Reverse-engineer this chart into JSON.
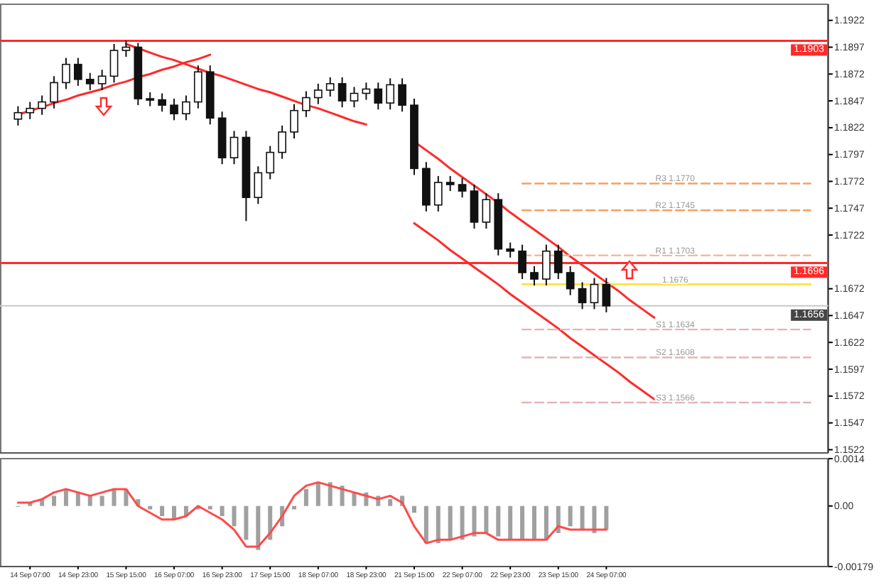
{
  "chart_data": [
    {
      "type": "candlestick",
      "categories": [
        null,
        null,
        null,
        null,
        null,
        null,
        null,
        null,
        null,
        null,
        null,
        null,
        null,
        null,
        null,
        null,
        null,
        null,
        null,
        null,
        null,
        null,
        null,
        null,
        null,
        null,
        null,
        null,
        null,
        null,
        null,
        null,
        null,
        null,
        null,
        null,
        null,
        null,
        null,
        null,
        null,
        null,
        null,
        null,
        null,
        null,
        null,
        null,
        null,
        null,
        null,
        null,
        null,
        null,
        null,
        null,
        null,
        null,
        null,
        null,
        null,
        null,
        null,
        null,
        null,
        null,
        null
      ],
      "ohlc": [
        [
          1.183,
          1.1842,
          1.1824,
          1.1836
        ],
        [
          1.1836,
          1.1846,
          1.183,
          1.184
        ],
        [
          1.184,
          1.1852,
          1.1834,
          1.1846
        ],
        [
          1.1846,
          1.187,
          1.184,
          1.1864
        ],
        [
          1.1864,
          1.1887,
          1.1858,
          1.1881
        ],
        [
          1.1881,
          1.1887,
          1.1861,
          1.1867
        ],
        [
          1.1867,
          1.1873,
          1.1857,
          1.1863
        ],
        [
          1.1863,
          1.1876,
          1.1857,
          1.187
        ],
        [
          1.187,
          1.19,
          1.1864,
          1.1894
        ],
        [
          1.1894,
          1.1903,
          1.1888,
          1.1897
        ],
        [
          1.1897,
          1.1901,
          1.1843,
          1.1849
        ],
        [
          1.1849,
          1.1855,
          1.1842,
          1.1848
        ],
        [
          1.1848,
          1.1854,
          1.1837,
          1.1843
        ],
        [
          1.1843,
          1.1849,
          1.1829,
          1.1835
        ],
        [
          1.1835,
          1.1852,
          1.1829,
          1.1846
        ],
        [
          1.1846,
          1.188,
          1.184,
          1.1874
        ],
        [
          1.1874,
          1.188,
          1.1825,
          1.1831
        ],
        [
          1.1831,
          1.1837,
          1.1788,
          1.1794
        ],
        [
          1.1794,
          1.1819,
          1.1788,
          1.1813
        ],
        [
          1.1813,
          1.1819,
          1.1735,
          1.1757
        ],
        [
          1.1757,
          1.1786,
          1.1751,
          1.178
        ],
        [
          1.178,
          1.1805,
          1.1774,
          1.1799
        ],
        [
          1.1799,
          1.1824,
          1.1793,
          1.1818
        ],
        [
          1.1818,
          1.1844,
          1.1812,
          1.1838
        ],
        [
          1.1838,
          1.1856,
          1.1832,
          1.185
        ],
        [
          1.185,
          1.1863,
          1.1844,
          1.1857
        ],
        [
          1.1857,
          1.1869,
          1.1851,
          1.1863
        ],
        [
          1.1863,
          1.1869,
          1.1841,
          1.1847
        ],
        [
          1.1847,
          1.186,
          1.1841,
          1.1854
        ],
        [
          1.1854,
          1.1864,
          1.1848,
          1.1858
        ],
        [
          1.1858,
          1.1864,
          1.1839,
          1.1845
        ],
        [
          1.1845,
          1.1868,
          1.1839,
          1.1862
        ],
        [
          1.1862,
          1.1868,
          1.1837,
          1.1843
        ],
        [
          1.1843,
          1.1849,
          1.1778,
          1.1784
        ],
        [
          1.1784,
          1.179,
          1.1744,
          1.175
        ],
        [
          1.175,
          1.1777,
          1.1744,
          1.1771
        ],
        [
          1.1771,
          1.1777,
          1.1763,
          1.1769
        ],
        [
          1.1769,
          1.1775,
          1.1757,
          1.1763
        ],
        [
          1.1763,
          1.1769,
          1.1728,
          1.1734
        ],
        [
          1.1734,
          1.1761,
          1.1728,
          1.1755
        ],
        [
          1.1755,
          1.1761,
          1.1703,
          1.1709
        ],
        [
          1.1709,
          1.1715,
          1.1701,
          1.1707
        ],
        [
          1.1707,
          1.1713,
          1.1681,
          1.1687
        ],
        [
          1.1687,
          1.1693,
          1.1675,
          1.1681
        ],
        [
          1.1681,
          1.1713,
          1.1675,
          1.1707
        ],
        [
          1.1707,
          1.1713,
          1.1681,
          1.1687
        ],
        [
          1.1687,
          1.1693,
          1.1666,
          1.1672
        ],
        [
          1.1672,
          1.1678,
          1.1653,
          1.1659
        ],
        [
          1.1659,
          1.1682,
          1.1653,
          1.1676
        ],
        [
          1.1676,
          1.1682,
          1.165,
          1.1656
        ],
        null,
        null,
        null,
        null,
        null,
        null,
        null,
        null,
        null,
        null,
        null,
        null,
        null,
        null,
        null,
        null,
        null
      ],
      "series": [
        {
          "type": "line",
          "color": "#ff2a2a",
          "values": [
            1.1834,
            1.1838,
            1.1841,
            1.1845,
            1.1848,
            1.1852,
            1.1855,
            1.1858,
            1.1862,
            1.1865,
            1.1869,
            1.1872,
            1.1876,
            1.1879,
            1.1883,
            1.1886,
            1.189,
            null,
            null,
            null,
            null,
            null,
            null,
            null,
            null,
            null,
            null,
            null,
            null,
            null,
            null,
            null,
            null,
            null,
            null,
            null,
            null,
            null,
            null,
            null,
            null,
            null,
            null,
            null,
            null,
            null,
            null,
            null,
            null,
            null,
            null,
            null,
            null,
            null,
            null,
            null,
            null,
            null,
            null,
            null,
            null,
            null,
            null,
            null,
            null,
            null,
            null
          ]
        },
        {
          "type": "line",
          "color": "#ff2a2a",
          "values": [
            null,
            null,
            null,
            null,
            null,
            null,
            null,
            null,
            null,
            1.19,
            1.1896,
            1.1892,
            1.1888,
            1.1885,
            1.1881,
            1.1877,
            1.1873,
            1.187,
            1.1866,
            1.1862,
            1.1858,
            1.1855,
            1.1851,
            1.1847,
            1.1843,
            1.184,
            1.1836,
            1.1832,
            1.1828,
            1.1825,
            null,
            null,
            null,
            null,
            null,
            null,
            null,
            null,
            null,
            null,
            null,
            null,
            null,
            null,
            null,
            null,
            null,
            null,
            null,
            null,
            null,
            null,
            null,
            null,
            null,
            null,
            null,
            null,
            null,
            null,
            null,
            null,
            null,
            null,
            null,
            null,
            null
          ]
        },
        {
          "type": "line",
          "color": "#ff2a2a",
          "values": [
            null,
            null,
            null,
            null,
            null,
            null,
            null,
            null,
            null,
            null,
            null,
            null,
            null,
            null,
            null,
            null,
            null,
            null,
            null,
            null,
            null,
            null,
            null,
            null,
            null,
            null,
            null,
            null,
            null,
            null,
            null,
            null,
            null,
            1.1809,
            1.1801,
            1.1793,
            1.1784,
            1.1776,
            1.1768,
            1.176,
            1.1752,
            1.1743,
            1.1735,
            1.1727,
            1.1719,
            1.1711,
            1.1702,
            1.1694,
            1.1686,
            1.1678,
            1.167,
            1.1661,
            1.1653,
            1.1645,
            null,
            null,
            null,
            null,
            null,
            null,
            null,
            null,
            null,
            null,
            null,
            null,
            null
          ]
        },
        {
          "type": "line",
          "color": "#ff2a2a",
          "values": [
            null,
            null,
            null,
            null,
            null,
            null,
            null,
            null,
            null,
            null,
            null,
            null,
            null,
            null,
            null,
            null,
            null,
            null,
            null,
            null,
            null,
            null,
            null,
            null,
            null,
            null,
            null,
            null,
            null,
            null,
            null,
            null,
            null,
            1.1733,
            1.1725,
            1.1717,
            1.1708,
            1.17,
            1.1692,
            1.1684,
            1.1676,
            1.1667,
            1.1659,
            1.1651,
            1.1643,
            1.1635,
            1.1626,
            1.1618,
            1.161,
            1.1602,
            1.1594,
            1.1585,
            1.1577,
            1.1569,
            null,
            null,
            null,
            null,
            null,
            null,
            null,
            null,
            null,
            null,
            null,
            null,
            null
          ]
        },
        {
          "type": "line",
          "color": "#f5a060",
          "line_style": "dashed",
          "values": [
            null,
            null,
            null,
            null,
            null,
            null,
            null,
            null,
            null,
            null,
            null,
            null,
            null,
            null,
            null,
            null,
            null,
            null,
            null,
            null,
            null,
            null,
            null,
            null,
            null,
            null,
            null,
            null,
            null,
            null,
            null,
            null,
            null,
            null,
            null,
            null,
            null,
            null,
            null,
            null,
            null,
            null,
            1.177,
            1.177,
            1.177,
            1.177,
            1.177,
            1.177,
            1.177,
            1.177,
            1.177,
            1.177,
            1.177,
            1.177,
            1.177,
            1.177,
            1.177,
            1.177,
            1.177,
            1.177,
            1.177,
            1.177,
            1.177,
            1.177,
            1.177,
            1.177,
            1.177
          ]
        },
        {
          "type": "line",
          "color": "#f5a060",
          "line_style": "dashed",
          "values": [
            null,
            null,
            null,
            null,
            null,
            null,
            null,
            null,
            null,
            null,
            null,
            null,
            null,
            null,
            null,
            null,
            null,
            null,
            null,
            null,
            null,
            null,
            null,
            null,
            null,
            null,
            null,
            null,
            null,
            null,
            null,
            null,
            null,
            null,
            null,
            null,
            null,
            null,
            null,
            null,
            null,
            null,
            1.1745,
            1.1745,
            1.1745,
            1.1745,
            1.1745,
            1.1745,
            1.1745,
            1.1745,
            1.1745,
            1.1745,
            1.1745,
            1.1745,
            1.1745,
            1.1745,
            1.1745,
            1.1745,
            1.1745,
            1.1745,
            1.1745,
            1.1745,
            1.1745,
            1.1745,
            1.1745,
            1.1745,
            1.1745
          ]
        },
        {
          "type": "line",
          "color": "#f5b8a0",
          "line_style": "dashed",
          "values": [
            null,
            null,
            null,
            null,
            null,
            null,
            null,
            null,
            null,
            null,
            null,
            null,
            null,
            null,
            null,
            null,
            null,
            null,
            null,
            null,
            null,
            null,
            null,
            null,
            null,
            null,
            null,
            null,
            null,
            null,
            null,
            null,
            null,
            null,
            null,
            null,
            null,
            null,
            null,
            null,
            null,
            null,
            1.1703,
            1.1703,
            1.1703,
            1.1703,
            1.1703,
            1.1703,
            1.1703,
            1.1703,
            1.1703,
            1.1703,
            1.1703,
            1.1703,
            1.1703,
            1.1703,
            1.1703,
            1.1703,
            1.1703,
            1.1703,
            1.1703,
            1.1703,
            1.1703,
            1.1703,
            1.1703,
            1.1703,
            1.1703
          ]
        },
        {
          "type": "line",
          "color": "#ffe34d",
          "values": [
            null,
            null,
            null,
            null,
            null,
            null,
            null,
            null,
            null,
            null,
            null,
            null,
            null,
            null,
            null,
            null,
            null,
            null,
            null,
            null,
            null,
            null,
            null,
            null,
            null,
            null,
            null,
            null,
            null,
            null,
            null,
            null,
            null,
            null,
            null,
            null,
            null,
            null,
            null,
            null,
            null,
            null,
            1.1676,
            1.1676,
            1.1676,
            1.1676,
            1.1676,
            1.1676,
            1.1676,
            1.1676,
            1.1676,
            1.1676,
            1.1676,
            1.1676,
            1.1676,
            1.1676,
            1.1676,
            1.1676,
            1.1676,
            1.1676,
            1.1676,
            1.1676,
            1.1676,
            1.1676,
            1.1676,
            1.1676,
            1.1676
          ]
        },
        {
          "type": "line",
          "color": "#e3b4b4",
          "line_style": "dashed",
          "values": [
            null,
            null,
            null,
            null,
            null,
            null,
            null,
            null,
            null,
            null,
            null,
            null,
            null,
            null,
            null,
            null,
            null,
            null,
            null,
            null,
            null,
            null,
            null,
            null,
            null,
            null,
            null,
            null,
            null,
            null,
            null,
            null,
            null,
            null,
            null,
            null,
            null,
            null,
            null,
            null,
            null,
            null,
            1.1634,
            1.1634,
            1.1634,
            1.1634,
            1.1634,
            1.1634,
            1.1634,
            1.1634,
            1.1634,
            1.1634,
            1.1634,
            1.1634,
            1.1634,
            1.1634,
            1.1634,
            1.1634,
            1.1634,
            1.1634,
            1.1634,
            1.1634,
            1.1634,
            1.1634,
            1.1634,
            1.1634,
            1.1634
          ]
        },
        {
          "type": "line",
          "color": "#e3b4b4",
          "line_style": "dashed",
          "values": [
            null,
            null,
            null,
            null,
            null,
            null,
            null,
            null,
            null,
            null,
            null,
            null,
            null,
            null,
            null,
            null,
            null,
            null,
            null,
            null,
            null,
            null,
            null,
            null,
            null,
            null,
            null,
            null,
            null,
            null,
            null,
            null,
            null,
            null,
            null,
            null,
            null,
            null,
            null,
            null,
            null,
            null,
            1.1608,
            1.1608,
            1.1608,
            1.1608,
            1.1608,
            1.1608,
            1.1608,
            1.1608,
            1.1608,
            1.1608,
            1.1608,
            1.1608,
            1.1608,
            1.1608,
            1.1608,
            1.1608,
            1.1608,
            1.1608,
            1.1608,
            1.1608,
            1.1608,
            1.1608,
            1.1608,
            1.1608,
            1.1608
          ]
        },
        {
          "type": "line",
          "color": "#e3b4b4",
          "line_style": "dashed",
          "values": [
            null,
            null,
            null,
            null,
            null,
            null,
            null,
            null,
            null,
            null,
            null,
            null,
            null,
            null,
            null,
            null,
            null,
            null,
            null,
            null,
            null,
            null,
            null,
            null,
            null,
            null,
            null,
            null,
            null,
            null,
            null,
            null,
            null,
            null,
            null,
            null,
            null,
            null,
            null,
            null,
            null,
            null,
            1.1566,
            1.1566,
            1.1566,
            1.1566,
            1.1566,
            1.1566,
            1.1566,
            1.1566,
            1.1566,
            1.1566,
            1.1566,
            1.1566,
            1.1566,
            1.1566,
            1.1566,
            1.1566,
            1.1566,
            1.1566,
            1.1566,
            1.1566,
            1.1566,
            1.1566,
            1.1566,
            1.1566,
            1.1566
          ]
        }
      ],
      "ref_lines": [
        {
          "axis": "y",
          "value": 1.1903,
          "label": "1.1903",
          "color": "#ff2a2a"
        },
        {
          "axis": "y",
          "value": 1.1696,
          "label": "1.1696",
          "color": "#ff2a2a"
        },
        {
          "axis": "y",
          "value": 1.1656,
          "label": "1.1656",
          "color": "#c8c8c8"
        }
      ],
      "annotations": [
        {
          "text": "R3 1.1770",
          "y": 1.177
        },
        {
          "text": "R2 1.1745",
          "y": 1.1745
        },
        {
          "text": "R1 1.1703",
          "y": 1.1703
        },
        {
          "text": "1.1676",
          "y": 1.1676
        },
        {
          "text": "S1 1.1634",
          "y": 1.1634
        },
        {
          "text": "S2 1.1608",
          "y": 1.1608
        },
        {
          "text": "S3 1.1566",
          "y": 1.1566
        }
      ],
      "ylim": [
        1.1519,
        1.1937
      ],
      "yticks": [
        1.1922,
        1.1897,
        1.1872,
        1.1847,
        1.1822,
        1.1797,
        1.1772,
        1.1747,
        1.1722,
        1.1672,
        1.1647,
        1.1622,
        1.1597,
        1.1572,
        1.1547,
        1.1522
      ],
      "tick_labels": "y"
    },
    {
      "type": "bar",
      "categories": [
        null,
        "14 Sep 07:00",
        null,
        null,
        null,
        "14 Sep 23:00",
        null,
        null,
        null,
        "15 Sep 15:00",
        null,
        null,
        null,
        "16 Sep 07:00",
        null,
        null,
        null,
        "16 Sep 23:00",
        null,
        null,
        null,
        "17 Sep 15:00",
        null,
        null,
        null,
        "18 Sep 07:00",
        null,
        null,
        null,
        "18 Sep 23:00",
        null,
        null,
        null,
        "21 Sep 15:00",
        null,
        null,
        null,
        "22 Sep 07:00",
        null,
        null,
        null,
        "22 Sep 23:00",
        null,
        null,
        null,
        "23 Sep 15:00",
        null,
        null,
        null,
        "24 Sep 07:00",
        null,
        null,
        null,
        null,
        null,
        null,
        null,
        null,
        null,
        null,
        null,
        null,
        null,
        null,
        null,
        null,
        null
      ],
      "series": [
        {
          "type": "bar",
          "color": "#a0a0a0",
          "values": [
            0,
            0.0001,
            0.0002,
            0.0003,
            0.0005,
            0.0004,
            0.0003,
            0.0003,
            0.0005,
            0.0005,
            0.0002,
            -0.0001,
            -0.0003,
            -0.0004,
            -0.0003,
            -0.0001,
            -0.0001,
            -0.0003,
            -0.0006,
            -0.001,
            -0.0013,
            -0.001,
            -0.0006,
            -0.0001,
            0.0005,
            0.0007,
            0.0007,
            0.0006,
            0.0004,
            0.0004,
            0.0003,
            0.0002,
            0.0003,
            -0.0002,
            -0.0011,
            -0.0011,
            -0.001,
            -0.001,
            -0.0009,
            -0.0008,
            -0.0009,
            -0.001,
            -0.001,
            -0.001,
            -0.001,
            -0.0008,
            -0.0006,
            -0.0007,
            -0.0008,
            -0.0007,
            null,
            null,
            null,
            null,
            null,
            null,
            null,
            null,
            null,
            null,
            null,
            null,
            null,
            null,
            null,
            null,
            null
          ]
        },
        {
          "type": "line",
          "color": "#ff4a4a",
          "values": [
            0.0001,
            0.0001,
            0.0002,
            0.0004,
            0.0005,
            0.0004,
            0.0003,
            0.0004,
            0.0005,
            0.0005,
            0,
            -0.0002,
            -0.0004,
            -0.0004,
            -0.0003,
            0,
            -0.0002,
            -0.0004,
            -0.0007,
            -0.0012,
            -0.0012,
            -0.0008,
            -0.0003,
            0.0003,
            0.0006,
            0.0007,
            0.0006,
            0.0005,
            0.0004,
            0.0003,
            0.0002,
            0.0003,
            0.0001,
            -0.0006,
            -0.0011,
            -0.001,
            -0.001,
            -0.0009,
            -0.0008,
            -0.0008,
            -0.001,
            -0.001,
            -0.001,
            -0.001,
            -0.001,
            -0.0006,
            -0.0007,
            -0.0007,
            -0.0007,
            -0.0007,
            null,
            null,
            null,
            null,
            null,
            null,
            null,
            null,
            null,
            null,
            null,
            null,
            null,
            null,
            null,
            null,
            null
          ]
        }
      ],
      "ylim": [
        -0.00179,
        0.0014
      ],
      "yticks": [
        0.0014,
        {
          "value": 0,
          "label": "0.00"
        },
        -0.00179
      ]
    }
  ]
}
